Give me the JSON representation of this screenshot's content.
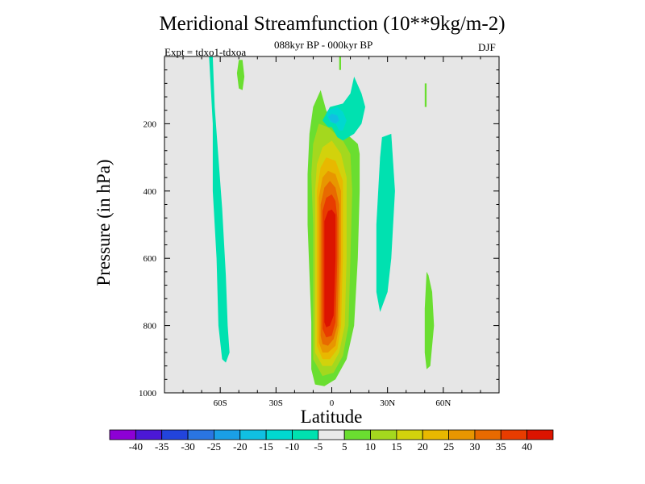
{
  "title": "Meridional Streamfunction (10**9kg/m-2)",
  "subtitle": "088kyr BP - 000kyr BP",
  "expt_label": "Expt = tdxo1-tdxoa",
  "season": "DJF",
  "chart_data": {
    "type": "contour",
    "xlabel": "Latitude",
    "ylabel": "Pressure (in hPa)",
    "xlim": [
      -90,
      90
    ],
    "ylim": [
      1000,
      0
    ],
    "xticks": [
      {
        "value": -60,
        "label": "60S"
      },
      {
        "value": -30,
        "label": "30S"
      },
      {
        "value": 0,
        "label": "0"
      },
      {
        "value": 30,
        "label": "30N"
      },
      {
        "value": 60,
        "label": "60N"
      }
    ],
    "yticks": [
      {
        "value": 200,
        "label": "200"
      },
      {
        "value": 400,
        "label": "400"
      },
      {
        "value": 600,
        "label": "600"
      },
      {
        "value": 800,
        "label": "800"
      },
      {
        "value": 1000,
        "label": "1000"
      }
    ],
    "background_color": "#e6e6e6",
    "colorbar": {
      "labels": [
        "-40",
        "-35",
        "-30",
        "-25",
        "-20",
        "-15",
        "-10",
        "-5",
        "5",
        "10",
        "15",
        "20",
        "25",
        "30",
        "35",
        "40"
      ],
      "colors": [
        "#8d00d5",
        "#4b18d6",
        "#2244dc",
        "#2a75e2",
        "#1a9fe6",
        "#10c0e2",
        "#00d8d0",
        "#00e1b0",
        "#eaeaea",
        "#6ade30",
        "#a4d81e",
        "#d2d20c",
        "#e8b800",
        "#e89600",
        "#e86a00",
        "#e83c00",
        "#dc1400"
      ]
    },
    "fields": [
      {
        "name": "positive cell",
        "levels": [
          {
            "color": "#6ade30",
            "polygon": [
              [
                -11,
                930
              ],
              [
                -11,
                790
              ],
              [
                -13,
                500
              ],
              [
                -13,
                350
              ],
              [
                -12,
                230
              ],
              [
                -10,
                150
              ],
              [
                -6,
                100
              ],
              [
                -3,
                160
              ],
              [
                2,
                210
              ],
              [
                10,
                240
              ],
              [
                14,
                260
              ],
              [
                15,
                290
              ],
              [
                15,
                400
              ],
              [
                14,
                600
              ],
              [
                12,
                800
              ],
              [
                8,
                900
              ],
              [
                2,
                960
              ],
              [
                -4,
                980
              ],
              [
                -9,
                975
              ]
            ]
          },
          {
            "color": "#a4d81e",
            "polygon": [
              [
                -10,
                900
              ],
              [
                -10,
                760
              ],
              [
                -10,
                500
              ],
              [
                -11,
                350
              ],
              [
                -10,
                260
              ],
              [
                -7,
                200
              ],
              [
                -2,
                210
              ],
              [
                6,
                250
              ],
              [
                10,
                290
              ],
              [
                11,
                400
              ],
              [
                10,
                600
              ],
              [
                9,
                800
              ],
              [
                6,
                890
              ],
              [
                1,
                940
              ],
              [
                -5,
                950
              ]
            ]
          },
          {
            "color": "#d2d20c",
            "polygon": [
              [
                -9,
                880
              ],
              [
                -9,
                600
              ],
              [
                -9,
                400
              ],
              [
                -8,
                320
              ],
              [
                -5,
                270
              ],
              [
                0,
                250
              ],
              [
                5,
                290
              ],
              [
                8,
                360
              ],
              [
                8,
                600
              ],
              [
                7,
                800
              ],
              [
                4,
                880
              ],
              [
                0,
                920
              ],
              [
                -5,
                920
              ]
            ]
          },
          {
            "color": "#e8b800",
            "polygon": [
              [
                -8,
                860
              ],
              [
                -8,
                600
              ],
              [
                -8,
                400
              ],
              [
                -6,
                330
              ],
              [
                -3,
                300
              ],
              [
                2,
                310
              ],
              [
                6,
                370
              ],
              [
                6,
                600
              ],
              [
                5,
                800
              ],
              [
                3,
                870
              ],
              [
                -1,
                900
              ],
              [
                -5,
                900
              ]
            ]
          },
          {
            "color": "#e89600",
            "polygon": [
              [
                -7,
                850
              ],
              [
                -7,
                600
              ],
              [
                -7,
                420
              ],
              [
                -5,
                360
              ],
              [
                -2,
                340
              ],
              [
                2,
                350
              ],
              [
                5,
                400
              ],
              [
                5,
                600
              ],
              [
                4,
                800
              ],
              [
                2,
                860
              ],
              [
                -2,
                880
              ],
              [
                -5,
                880
              ]
            ]
          },
          {
            "color": "#e86a00",
            "polygon": [
              [
                -6,
                830
              ],
              [
                -6,
                600
              ],
              [
                -6,
                440
              ],
              [
                -4,
                390
              ],
              [
                -1,
                370
              ],
              [
                2,
                390
              ],
              [
                4,
                440
              ],
              [
                4,
                600
              ],
              [
                3,
                800
              ],
              [
                1,
                840
              ],
              [
                -2,
                860
              ],
              [
                -5,
                855
              ]
            ]
          },
          {
            "color": "#e83c00",
            "polygon": [
              [
                -5,
                810
              ],
              [
                -5,
                600
              ],
              [
                -5,
                460
              ],
              [
                -3,
                420
              ],
              [
                0,
                410
              ],
              [
                2,
                430
              ],
              [
                3,
                480
              ],
              [
                3,
                600
              ],
              [
                2,
                790
              ],
              [
                0,
                830
              ],
              [
                -3,
                835
              ]
            ]
          },
          {
            "color": "#dc1400",
            "polygon": [
              [
                -4,
                790
              ],
              [
                -4,
                600
              ],
              [
                -4,
                490
              ],
              [
                -2,
                460
              ],
              [
                0,
                455
              ],
              [
                2,
                470
              ],
              [
                2,
                520
              ],
              [
                2,
                600
              ],
              [
                1,
                770
              ],
              [
                -1,
                800
              ],
              [
                -3,
                805
              ]
            ]
          }
        ]
      },
      {
        "name": "negative and small features",
        "levels": [
          {
            "color": "#00e1b0",
            "polygon": [
              [
                -66,
                0
              ],
              [
                -64,
                0
              ],
              [
                -63,
                150
              ],
              [
                -61,
                300
              ],
              [
                -59,
                450
              ],
              [
                -57,
                650
              ],
              [
                -56,
                800
              ],
              [
                -55,
                880
              ],
              [
                -57,
                910
              ],
              [
                -59,
                900
              ],
              [
                -61,
                800
              ],
              [
                -62,
                600
              ],
              [
                -64,
                400
              ],
              [
                -64,
                200
              ]
            ]
          },
          {
            "color": "#6ade30",
            "polygon": [
              [
                -50,
                10
              ],
              [
                -48,
                10
              ],
              [
                -47,
                60
              ],
              [
                -48,
                100
              ],
              [
                -50,
                95
              ],
              [
                -51,
                50
              ]
            ]
          },
          {
            "color": "#00e1b0",
            "polygon": [
              [
                -5,
                190
              ],
              [
                -4,
                180
              ],
              [
                -1,
                150
              ],
              [
                6,
                140
              ],
              [
                10,
                110
              ],
              [
                12,
                60
              ],
              [
                16,
                110
              ],
              [
                18,
                150
              ],
              [
                16,
                200
              ],
              [
                12,
                230
              ],
              [
                6,
                250
              ],
              [
                3,
                240
              ],
              [
                0,
                210
              ],
              [
                -2,
                210
              ]
            ]
          },
          {
            "color": "#00d8d0",
            "polygon": [
              [
                -3,
                170
              ],
              [
                -2,
                160
              ],
              [
                3,
                150
              ],
              [
                6,
                165
              ],
              [
                8,
                190
              ],
              [
                6,
                220
              ],
              [
                4,
                220
              ],
              [
                2,
                200
              ],
              [
                -1,
                195
              ]
            ]
          },
          {
            "color": "#10c0e2",
            "polygon": [
              [
                -2,
                180
              ],
              [
                0,
                170
              ],
              [
                3,
                175
              ],
              [
                4,
                190
              ],
              [
                2,
                200
              ],
              [
                0,
                195
              ]
            ]
          },
          {
            "color": "#00e1b0",
            "polygon": [
              [
                27,
                240
              ],
              [
                32,
                230
              ],
              [
                34,
                400
              ],
              [
                32,
                600
              ],
              [
                30,
                700
              ],
              [
                26,
                760
              ],
              [
                24,
                700
              ],
              [
                24,
                500
              ],
              [
                26,
                300
              ]
            ]
          },
          {
            "color": "#6ade30",
            "polygon": [
              [
                4,
                0
              ],
              [
                5,
                0
              ],
              [
                5,
                40
              ],
              [
                4,
                40
              ]
            ]
          },
          {
            "color": "#6ade30",
            "polygon": [
              [
                50,
                80
              ],
              [
                51,
                80
              ],
              [
                51,
                150
              ],
              [
                50,
                150
              ]
            ]
          },
          {
            "color": "#6ade30",
            "polygon": [
              [
                51,
                640
              ],
              [
                52,
                650
              ],
              [
                54,
                700
              ],
              [
                55,
                800
              ],
              [
                53,
                920
              ],
              [
                51,
                930
              ],
              [
                50,
                880
              ],
              [
                50,
                750
              ]
            ]
          }
        ]
      }
    ]
  }
}
